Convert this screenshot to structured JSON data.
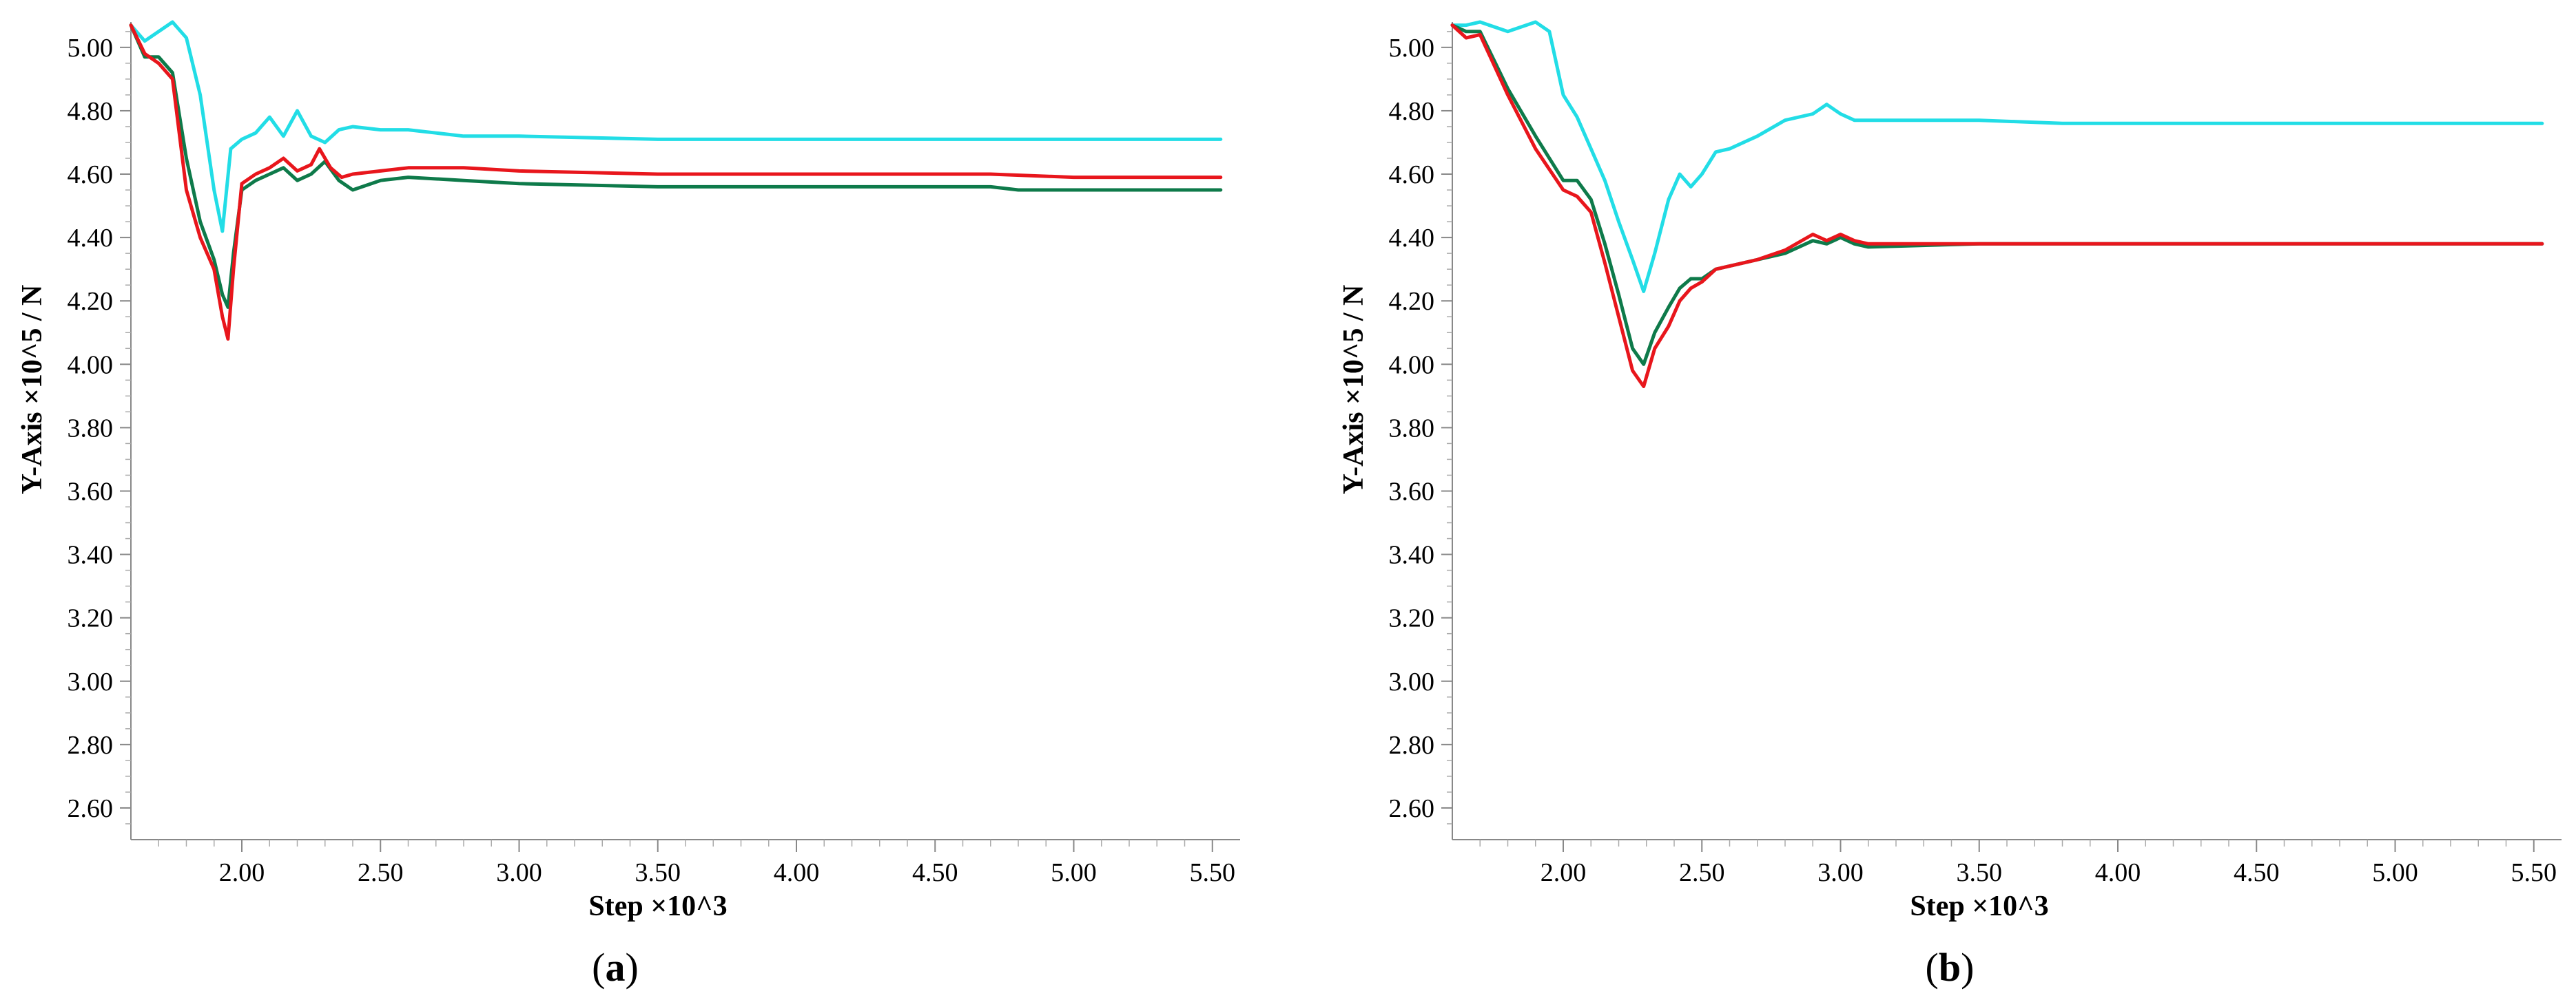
{
  "chart_data": [
    {
      "type": "line",
      "panel_label": "a",
      "xlabel": "Step ×10^3",
      "ylabel": "Y-Axis ×10^5 / N",
      "xlim": [
        1.6,
        5.6
      ],
      "ylim": [
        2.5,
        5.08
      ],
      "xticks": [
        "2.00",
        "2.50",
        "3.00",
        "3.50",
        "4.00",
        "4.50",
        "5.00",
        "5.50"
      ],
      "yticks": [
        "2.60",
        "2.80",
        "3.00",
        "3.20",
        "3.40",
        "3.60",
        "3.80",
        "4.00",
        "4.20",
        "4.40",
        "4.60",
        "4.80",
        "5.00"
      ],
      "series": [
        {
          "color": "#22dde6",
          "x": [
            1.6,
            1.65,
            1.7,
            1.75,
            1.8,
            1.85,
            1.9,
            1.93,
            1.96,
            2.0,
            2.05,
            2.1,
            2.15,
            2.2,
            2.25,
            2.3,
            2.35,
            2.4,
            2.5,
            2.6,
            2.7,
            2.8,
            3.0,
            3.5,
            4.0,
            4.5,
            5.0,
            5.53
          ],
          "y": [
            5.07,
            5.02,
            5.05,
            5.08,
            5.03,
            4.85,
            4.55,
            4.42,
            4.68,
            4.71,
            4.73,
            4.78,
            4.72,
            4.8,
            4.72,
            4.7,
            4.74,
            4.75,
            4.74,
            4.74,
            4.73,
            4.72,
            4.72,
            4.71,
            4.71,
            4.71,
            4.71,
            4.71
          ]
        },
        {
          "color": "#0e7a4a",
          "x": [
            1.6,
            1.65,
            1.7,
            1.75,
            1.8,
            1.85,
            1.9,
            1.93,
            1.95,
            1.97,
            2.0,
            2.05,
            2.1,
            2.15,
            2.2,
            2.25,
            2.3,
            2.35,
            2.4,
            2.5,
            2.6,
            2.8,
            3.0,
            3.5,
            4.0,
            4.5,
            4.7,
            4.8,
            5.0,
            5.53
          ],
          "y": [
            5.07,
            4.97,
            4.97,
            4.92,
            4.65,
            4.45,
            4.33,
            4.22,
            4.18,
            4.35,
            4.55,
            4.58,
            4.6,
            4.62,
            4.58,
            4.6,
            4.64,
            4.58,
            4.55,
            4.58,
            4.59,
            4.58,
            4.57,
            4.56,
            4.56,
            4.56,
            4.56,
            4.55,
            4.55,
            4.55
          ]
        },
        {
          "color": "#e8161c",
          "x": [
            1.6,
            1.65,
            1.7,
            1.75,
            1.8,
            1.85,
            1.9,
            1.93,
            1.95,
            1.97,
            2.0,
            2.05,
            2.1,
            2.15,
            2.2,
            2.25,
            2.28,
            2.32,
            2.36,
            2.4,
            2.5,
            2.6,
            2.7,
            2.8,
            3.0,
            3.5,
            4.0,
            4.5,
            4.7,
            5.0,
            5.53
          ],
          "y": [
            5.07,
            4.98,
            4.95,
            4.9,
            4.55,
            4.4,
            4.3,
            4.15,
            4.08,
            4.3,
            4.57,
            4.6,
            4.62,
            4.65,
            4.61,
            4.63,
            4.68,
            4.62,
            4.59,
            4.6,
            4.61,
            4.62,
            4.62,
            4.62,
            4.61,
            4.6,
            4.6,
            4.6,
            4.6,
            4.59,
            4.59
          ]
        }
      ]
    },
    {
      "type": "line",
      "panel_label": "b",
      "xlabel": "Step ×10^3",
      "ylabel": "Y-Axis ×10^5  / N",
      "xlim": [
        1.6,
        5.6
      ],
      "ylim": [
        2.5,
        5.08
      ],
      "xticks": [
        "2.00",
        "2.50",
        "3.00",
        "3.50",
        "4.00",
        "4.50",
        "5.00",
        "5.50"
      ],
      "yticks": [
        "2.60",
        "2.80",
        "3.00",
        "3.20",
        "3.40",
        "3.60",
        "3.80",
        "4.00",
        "4.20",
        "4.40",
        "4.60",
        "4.80",
        "5.00"
      ],
      "series": [
        {
          "color": "#22dde6",
          "x": [
            1.6,
            1.65,
            1.7,
            1.8,
            1.9,
            1.95,
            2.0,
            2.05,
            2.1,
            2.15,
            2.2,
            2.25,
            2.29,
            2.33,
            2.38,
            2.42,
            2.46,
            2.5,
            2.55,
            2.6,
            2.7,
            2.8,
            2.9,
            2.95,
            3.0,
            3.05,
            3.1,
            3.5,
            3.8,
            4.0,
            4.5,
            5.0,
            5.53
          ],
          "y": [
            5.07,
            5.07,
            5.08,
            5.05,
            5.08,
            5.05,
            4.85,
            4.78,
            4.68,
            4.58,
            4.45,
            4.33,
            4.23,
            4.35,
            4.52,
            4.6,
            4.56,
            4.6,
            4.67,
            4.68,
            4.72,
            4.77,
            4.79,
            4.82,
            4.79,
            4.77,
            4.77,
            4.77,
            4.76,
            4.76,
            4.76,
            4.76,
            4.76
          ]
        },
        {
          "color": "#0e7a4a",
          "x": [
            1.6,
            1.65,
            1.7,
            1.8,
            1.9,
            2.0,
            2.05,
            2.1,
            2.15,
            2.2,
            2.25,
            2.29,
            2.33,
            2.38,
            2.42,
            2.46,
            2.5,
            2.55,
            2.6,
            2.7,
            2.8,
            2.9,
            2.95,
            3.0,
            3.05,
            3.1,
            3.5,
            4.0,
            4.5,
            5.0,
            5.53
          ],
          "y": [
            5.07,
            5.05,
            5.05,
            4.87,
            4.72,
            4.58,
            4.58,
            4.52,
            4.38,
            4.22,
            4.05,
            4.0,
            4.1,
            4.18,
            4.24,
            4.27,
            4.27,
            4.3,
            4.31,
            4.33,
            4.35,
            4.39,
            4.38,
            4.4,
            4.38,
            4.37,
            4.38,
            4.38,
            4.38,
            4.38,
            4.38
          ]
        },
        {
          "color": "#e8161c",
          "x": [
            1.6,
            1.65,
            1.7,
            1.8,
            1.9,
            2.0,
            2.05,
            2.1,
            2.15,
            2.2,
            2.25,
            2.29,
            2.33,
            2.38,
            2.42,
            2.46,
            2.5,
            2.55,
            2.6,
            2.7,
            2.8,
            2.9,
            2.95,
            3.0,
            3.05,
            3.1,
            3.5,
            4.0,
            4.5,
            5.0,
            5.53
          ],
          "y": [
            5.07,
            5.03,
            5.04,
            4.85,
            4.68,
            4.55,
            4.53,
            4.48,
            4.32,
            4.15,
            3.98,
            3.93,
            4.05,
            4.12,
            4.2,
            4.24,
            4.26,
            4.3,
            4.31,
            4.33,
            4.36,
            4.41,
            4.39,
            4.41,
            4.39,
            4.38,
            4.38,
            4.38,
            4.38,
            4.38,
            4.38
          ]
        }
      ]
    }
  ]
}
